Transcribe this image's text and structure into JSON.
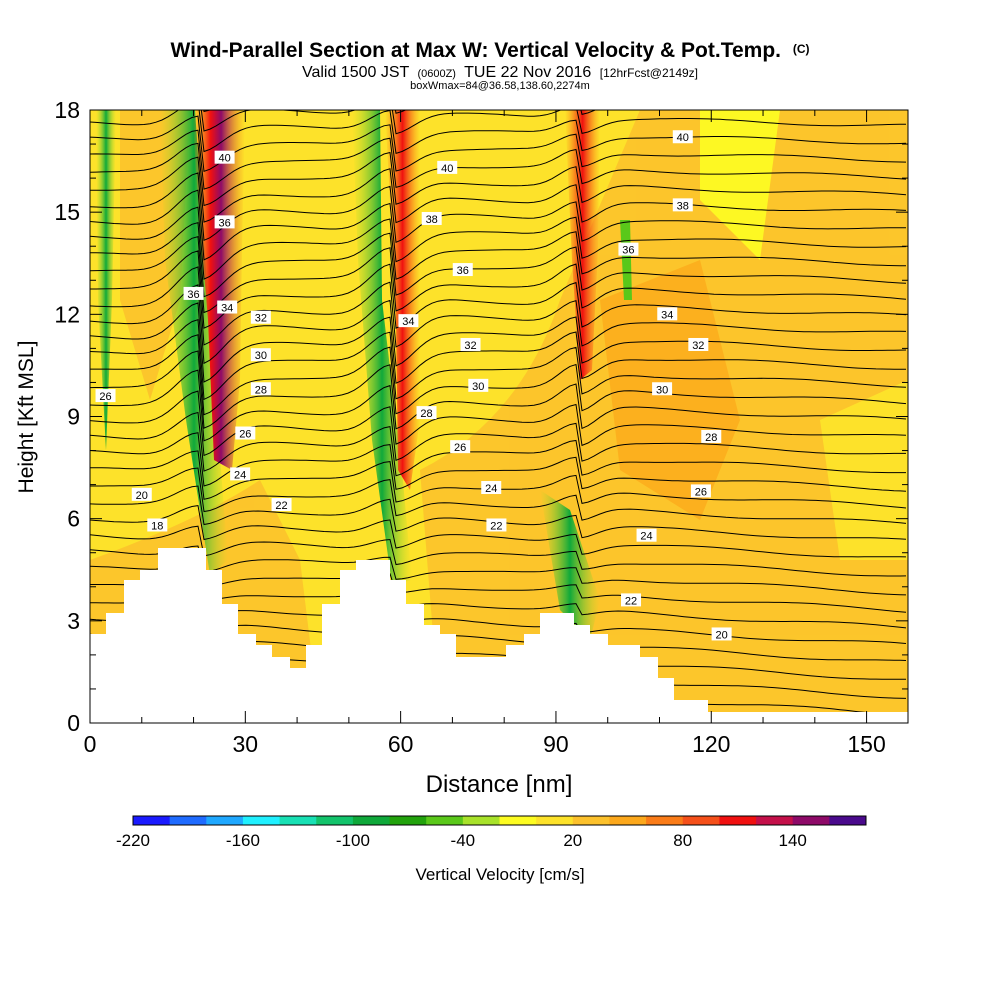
{
  "chart_data": {
    "type": "heatmap",
    "title": "Wind-Parallel Section at Max W: Vertical Velocity & Pot.Temp.",
    "title_mark": "(C)",
    "subtitle_parts": [
      "Valid 1500 JST",
      "(0600Z)",
      "TUE 22 Nov 2016",
      "[12hrFcst@2149z]"
    ],
    "subsubtitle": "boxWmax=84@36.58,138.60,2274m",
    "xlabel": "Distance [nm]",
    "ylabel": "Height [Kft MSL]",
    "xlim": [
      0,
      158
    ],
    "ylim": [
      0,
      18
    ],
    "x_ticks": [
      "0",
      "30",
      "60",
      "90",
      "120",
      "150"
    ],
    "x_tick_values": [
      0,
      30,
      60,
      90,
      120,
      150
    ],
    "y_ticks": [
      "0",
      "3",
      "6",
      "9",
      "12",
      "15",
      "18"
    ],
    "y_tick_values": [
      0,
      3,
      6,
      9,
      12,
      15,
      18
    ],
    "colorbar_label": "Vertical Velocity [cm/s]",
    "colorbar_ticks": [
      "-220",
      "-160",
      "-100",
      "-40",
      "20",
      "80",
      "140"
    ],
    "colorbar_tick_values": [
      -220,
      -160,
      -100,
      -40,
      20,
      80,
      140
    ],
    "colorbar_levels": [
      -220,
      -200,
      -180,
      -160,
      -140,
      -120,
      -100,
      -80,
      -60,
      -40,
      -20,
      0,
      20,
      40,
      60,
      80,
      100,
      120,
      140,
      160
    ],
    "colorbar_colors": [
      "#1a1aff",
      "#1f6bff",
      "#1fa8ff",
      "#20f0ff",
      "#18e0b4",
      "#12c36b",
      "#0fa83a",
      "#22a20c",
      "#5ac81a",
      "#a8e22a",
      "#fdfc22",
      "#fde22a",
      "#fcc12c",
      "#fca81c",
      "#fa7c18",
      "#f5501a",
      "#f01010",
      "#c4104a",
      "#8e0a68",
      "#4a0a8c"
    ],
    "background_color": "#fde22a",
    "terrain_color": "#ffffff",
    "contour_color": "#000000",
    "contour_labels": [
      {
        "text": "40",
        "x": 26,
        "y": 16.6
      },
      {
        "text": "36",
        "x": 26,
        "y": 14.7
      },
      {
        "text": "36",
        "x": 20,
        "y": 12.6
      },
      {
        "text": "34",
        "x": 26.5,
        "y": 12.2
      },
      {
        "text": "32",
        "x": 33,
        "y": 11.9
      },
      {
        "text": "30",
        "x": 33,
        "y": 10.8
      },
      {
        "text": "28",
        "x": 33,
        "y": 9.8
      },
      {
        "text": "26",
        "x": 3,
        "y": 9.6
      },
      {
        "text": "26",
        "x": 30,
        "y": 8.5
      },
      {
        "text": "24",
        "x": 29,
        "y": 7.3
      },
      {
        "text": "22",
        "x": 37,
        "y": 6.4
      },
      {
        "text": "20",
        "x": 10,
        "y": 6.7
      },
      {
        "text": "18",
        "x": 13,
        "y": 5.8
      },
      {
        "text": "40",
        "x": 69,
        "y": 16.3
      },
      {
        "text": "38",
        "x": 66,
        "y": 14.8
      },
      {
        "text": "36",
        "x": 72,
        "y": 13.3
      },
      {
        "text": "34",
        "x": 61.5,
        "y": 11.8
      },
      {
        "text": "32",
        "x": 73.5,
        "y": 11.1
      },
      {
        "text": "30",
        "x": 75,
        "y": 9.9
      },
      {
        "text": "28",
        "x": 65,
        "y": 9.1
      },
      {
        "text": "26",
        "x": 71.5,
        "y": 8.1
      },
      {
        "text": "24",
        "x": 77.5,
        "y": 6.9
      },
      {
        "text": "22",
        "x": 78.5,
        "y": 5.8
      },
      {
        "text": "40",
        "x": 114.5,
        "y": 17.2
      },
      {
        "text": "38",
        "x": 114.5,
        "y": 15.2
      },
      {
        "text": "36",
        "x": 104,
        "y": 13.9
      },
      {
        "text": "34",
        "x": 111.5,
        "y": 12.0
      },
      {
        "text": "32",
        "x": 117.5,
        "y": 11.1
      },
      {
        "text": "30",
        "x": 110.5,
        "y": 9.8
      },
      {
        "text": "28",
        "x": 120,
        "y": 8.4
      },
      {
        "text": "26",
        "x": 118,
        "y": 6.8
      },
      {
        "text": "24",
        "x": 107.5,
        "y": 5.5
      },
      {
        "text": "22",
        "x": 104.5,
        "y": 3.6
      },
      {
        "text": "20",
        "x": 122,
        "y": 2.6
      }
    ]
  }
}
